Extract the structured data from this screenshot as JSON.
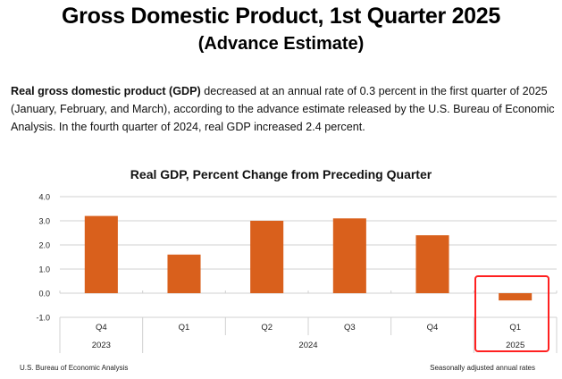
{
  "header": {
    "title": "Gross Domestic Product, 1st Quarter 2025",
    "subtitle": "(Advance Estimate)"
  },
  "summary": {
    "bold_lead": "Real gross domestic product (GDP)",
    "text": " decreased at an annual rate of 0.3 percent in the first quarter of 2025 (January, February, and March), according to the advance estimate released by the U.S. Bureau of Economic Analysis. In the fourth quarter of 2024, real GDP increased 2.4 percent."
  },
  "footer": {
    "source": "U.S. Bureau of Economic Analysis",
    "note": "Seasonally adjusted annual rates"
  },
  "colors": {
    "bar": "#d9601c",
    "highlight": "#ff2020",
    "grid": "#d0d0d0"
  },
  "chart_data": {
    "type": "bar",
    "title": "Real GDP, Percent Change from Preceding Quarter",
    "xlabel": "",
    "ylabel": "",
    "categories": [
      "Q4",
      "Q1",
      "Q2",
      "Q3",
      "Q4",
      "Q1"
    ],
    "year_groups": [
      {
        "label": "2023",
        "span": 1
      },
      {
        "label": "2024",
        "span": 4
      },
      {
        "label": "2025",
        "span": 1
      }
    ],
    "values": [
      3.2,
      1.6,
      3.0,
      3.1,
      2.4,
      -0.3
    ],
    "ylim": [
      -1.0,
      4.0
    ],
    "yticks": [
      "4.0",
      "3.0",
      "2.0",
      "1.0",
      "0.0",
      "-1.0"
    ],
    "ytick_values": [
      4,
      3,
      2,
      1,
      0,
      -1
    ],
    "grid": true,
    "highlighted_category_index": 5
  }
}
